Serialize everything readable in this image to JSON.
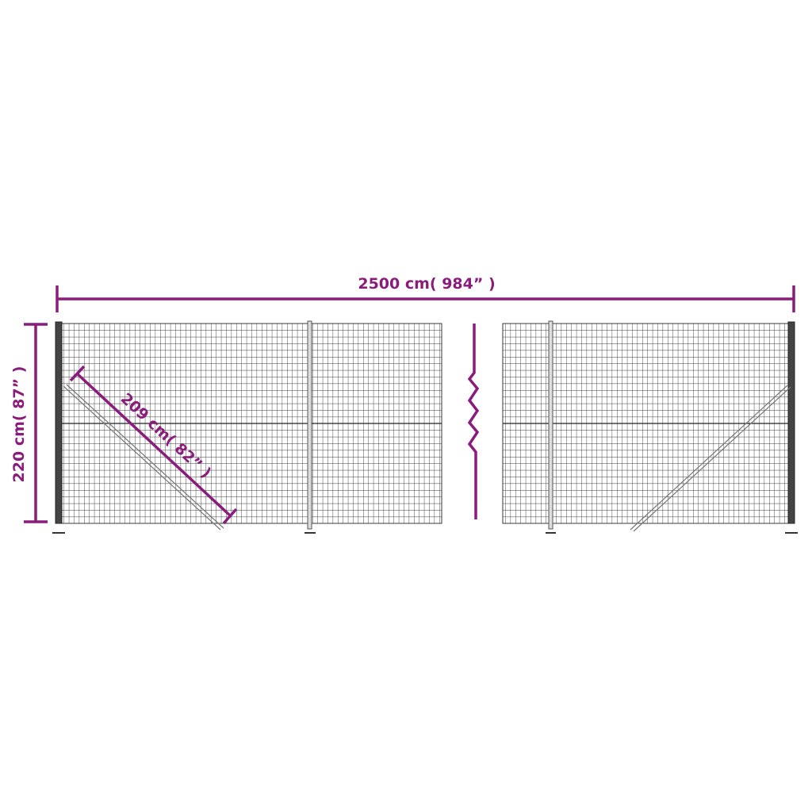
{
  "dimensions": {
    "total_width": "2500 cm( 984”  )",
    "height": "220 cm( 87”  )",
    "diagonal_brace": "209 cm( 82”  )"
  },
  "colors": {
    "dimension_line": "#8a1c7c",
    "mesh": "#3a3a3a",
    "post": "#555555"
  }
}
